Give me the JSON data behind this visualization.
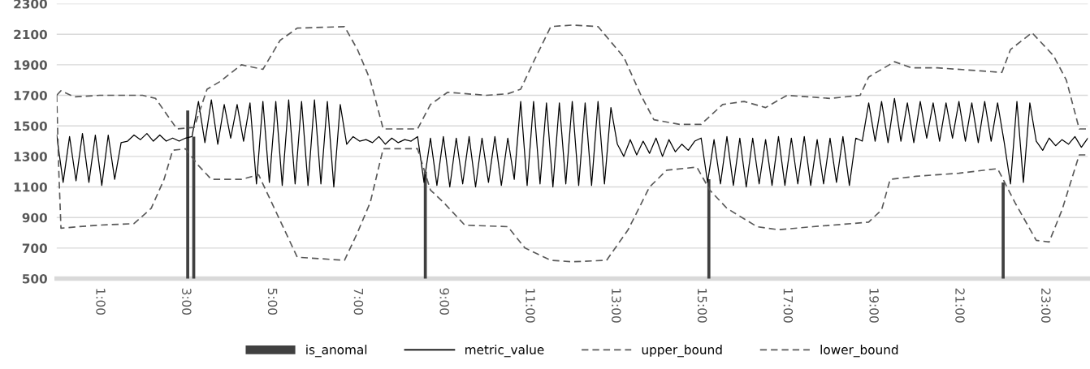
{
  "chart_data": {
    "type": "line",
    "xlim": [
      0,
      24
    ],
    "ylim": [
      500,
      2300
    ],
    "yticks": [
      500,
      700,
      900,
      1100,
      1300,
      1500,
      1700,
      1900,
      2100,
      2300
    ],
    "xticks": [
      {
        "value": 1,
        "label": "1:00"
      },
      {
        "value": 3,
        "label": "3:00"
      },
      {
        "value": 5,
        "label": "5:00"
      },
      {
        "value": 7,
        "label": "7:00"
      },
      {
        "value": 9,
        "label": "9:00"
      },
      {
        "value": 11,
        "label": "11:00"
      },
      {
        "value": 13,
        "label": "13:00"
      },
      {
        "value": 15,
        "label": "15:00"
      },
      {
        "value": 17,
        "label": "17:00"
      },
      {
        "value": 19,
        "label": "19:00"
      },
      {
        "value": 21,
        "label": "21:00"
      },
      {
        "value": 23,
        "label": "23:00"
      }
    ],
    "grid": "y",
    "legend": "bottom",
    "series": [
      {
        "name": "is_anomal",
        "type": "bar",
        "color": "#404040",
        "x": [
          3.05,
          3.19,
          8.58,
          15.18,
          22.03
        ],
        "values": [
          1600,
          1430,
          1200,
          1150,
          1130
        ]
      },
      {
        "name": "metric_value",
        "color": "#000000",
        "line_style": "solid",
        "x": [
          0,
          0.15,
          0.3,
          0.45,
          0.6,
          0.75,
          0.9,
          1.05,
          1.2,
          1.35,
          1.5,
          1.65,
          1.8,
          1.95,
          2.1,
          2.25,
          2.4,
          2.55,
          2.7,
          2.85,
          3.0,
          3.15,
          3.3,
          3.45,
          3.6,
          3.75,
          3.9,
          4.05,
          4.2,
          4.35,
          4.5,
          4.65,
          4.8,
          4.95,
          5.1,
          5.25,
          5.4,
          5.55,
          5.7,
          5.85,
          6.0,
          6.15,
          6.3,
          6.45,
          6.6,
          6.75,
          6.9,
          7.05,
          7.2,
          7.35,
          7.5,
          7.65,
          7.8,
          7.95,
          8.1,
          8.25,
          8.4,
          8.55,
          8.7,
          8.85,
          9.0,
          9.15,
          9.3,
          9.45,
          9.6,
          9.75,
          9.9,
          10.05,
          10.2,
          10.35,
          10.5,
          10.65,
          10.8,
          10.95,
          11.1,
          11.25,
          11.4,
          11.55,
          11.7,
          11.85,
          12.0,
          12.15,
          12.3,
          12.45,
          12.6,
          12.75,
          12.9,
          13.05,
          13.2,
          13.35,
          13.5,
          13.65,
          13.8,
          13.95,
          14.1,
          14.25,
          14.4,
          14.55,
          14.7,
          14.85,
          15.0,
          15.15,
          15.3,
          15.45,
          15.6,
          15.75,
          15.9,
          16.05,
          16.2,
          16.35,
          16.5,
          16.65,
          16.8,
          16.95,
          17.1,
          17.25,
          17.4,
          17.55,
          17.7,
          17.85,
          18.0,
          18.15,
          18.3,
          18.45,
          18.6,
          18.75,
          18.9,
          19.05,
          19.2,
          19.35,
          19.5,
          19.65,
          19.8,
          19.95,
          20.1,
          20.25,
          20.4,
          20.55,
          20.7,
          20.85,
          21.0,
          21.15,
          21.3,
          21.45,
          21.6,
          21.75,
          21.9,
          22.05,
          22.2,
          22.35,
          22.5,
          22.65,
          22.8,
          22.95,
          23.1,
          23.25,
          23.4,
          23.55,
          23.7,
          23.85,
          24.0
        ],
        "values": [
          1440,
          1130,
          1430,
          1140,
          1450,
          1130,
          1440,
          1110,
          1440,
          1150,
          1390,
          1400,
          1440,
          1410,
          1450,
          1400,
          1440,
          1400,
          1420,
          1400,
          1420,
          1430,
          1660,
          1390,
          1670,
          1380,
          1640,
          1420,
          1640,
          1400,
          1650,
          1120,
          1660,
          1130,
          1660,
          1110,
          1670,
          1120,
          1660,
          1110,
          1670,
          1120,
          1660,
          1100,
          1640,
          1380,
          1430,
          1400,
          1410,
          1390,
          1430,
          1380,
          1420,
          1390,
          1410,
          1400,
          1430,
          1130,
          1420,
          1110,
          1430,
          1100,
          1420,
          1120,
          1430,
          1100,
          1420,
          1130,
          1430,
          1110,
          1420,
          1150,
          1660,
          1110,
          1660,
          1120,
          1650,
          1100,
          1650,
          1120,
          1660,
          1110,
          1650,
          1110,
          1660,
          1120,
          1620,
          1380,
          1300,
          1410,
          1310,
          1400,
          1320,
          1420,
          1300,
          1410,
          1330,
          1380,
          1340,
          1400,
          1420,
          1130,
          1410,
          1120,
          1430,
          1110,
          1420,
          1100,
          1420,
          1120,
          1410,
          1110,
          1430,
          1110,
          1420,
          1120,
          1430,
          1110,
          1410,
          1120,
          1420,
          1130,
          1430,
          1110,
          1420,
          1400,
          1650,
          1400,
          1660,
          1390,
          1680,
          1400,
          1650,
          1390,
          1660,
          1420,
          1650,
          1400,
          1650,
          1420,
          1660,
          1400,
          1650,
          1390,
          1660,
          1400,
          1650,
          1400,
          1120,
          1660,
          1130,
          1650,
          1400,
          1340,
          1420,
          1370,
          1410,
          1380,
          1430,
          1360,
          1420
        ]
      },
      {
        "name": "upper_bound",
        "color": "#595959",
        "line_style": "dashed",
        "x": [
          0,
          0.1,
          0.4,
          1,
          2,
          2.3,
          2.6,
          2.8,
          3.2,
          3.5,
          3.8,
          4.3,
          4.8,
          5.2,
          5.6,
          6.7,
          7.0,
          7.3,
          7.6,
          8.4,
          8.7,
          9.1,
          10.0,
          10.5,
          10.8,
          11.1,
          11.5,
          12.0,
          12.6,
          13.2,
          13.6,
          13.9,
          14.5,
          15.0,
          15.5,
          16.0,
          16.5,
          17.0,
          18.0,
          18.7,
          18.9,
          19.5,
          19.9,
          20.5,
          21.5,
          22.0,
          22.2,
          22.7,
          23.2,
          23.5,
          23.8,
          24
        ],
        "values": [
          1700,
          1730,
          1690,
          1700,
          1700,
          1680,
          1560,
          1480,
          1490,
          1740,
          1790,
          1900,
          1870,
          2060,
          2140,
          2150,
          2000,
          1800,
          1480,
          1480,
          1640,
          1720,
          1700,
          1710,
          1740,
          1920,
          2150,
          2160,
          2150,
          1950,
          1700,
          1540,
          1510,
          1510,
          1640,
          1660,
          1620,
          1700,
          1680,
          1700,
          1820,
          1920,
          1880,
          1880,
          1860,
          1850,
          2000,
          2110,
          1960,
          1800,
          1480,
          1480
        ]
      },
      {
        "name": "lower_bound",
        "color": "#595959",
        "line_style": "dashed",
        "x": [
          0,
          0.05,
          0.1,
          0.5,
          1,
          1.8,
          2.2,
          2.5,
          2.7,
          3.0,
          3.3,
          3.6,
          4.3,
          4.7,
          4.9,
          5.3,
          5.6,
          6.7,
          7.0,
          7.3,
          7.6,
          8.4,
          8.7,
          9.0,
          9.5,
          10.5,
          10.9,
          11.5,
          12.0,
          12.8,
          13.3,
          13.8,
          14.2,
          14.9,
          15.2,
          15.6,
          16.3,
          16.8,
          17.6,
          18.5,
          18.9,
          19.2,
          19.4,
          20,
          21,
          21.9,
          22.3,
          22.6,
          22.8,
          23.1,
          23.4,
          23.8,
          24
        ],
        "values": [
          1700,
          1200,
          830,
          840,
          850,
          860,
          960,
          1150,
          1340,
          1350,
          1240,
          1150,
          1150,
          1180,
          1060,
          820,
          640,
          620,
          800,
          1000,
          1350,
          1350,
          1080,
          1000,
          850,
          840,
          700,
          620,
          610,
          620,
          820,
          1100,
          1210,
          1230,
          1080,
          960,
          840,
          820,
          840,
          860,
          870,
          950,
          1150,
          1170,
          1190,
          1220,
          1000,
          850,
          750,
          740,
          950,
          1310,
          1310
        ]
      }
    ]
  }
}
